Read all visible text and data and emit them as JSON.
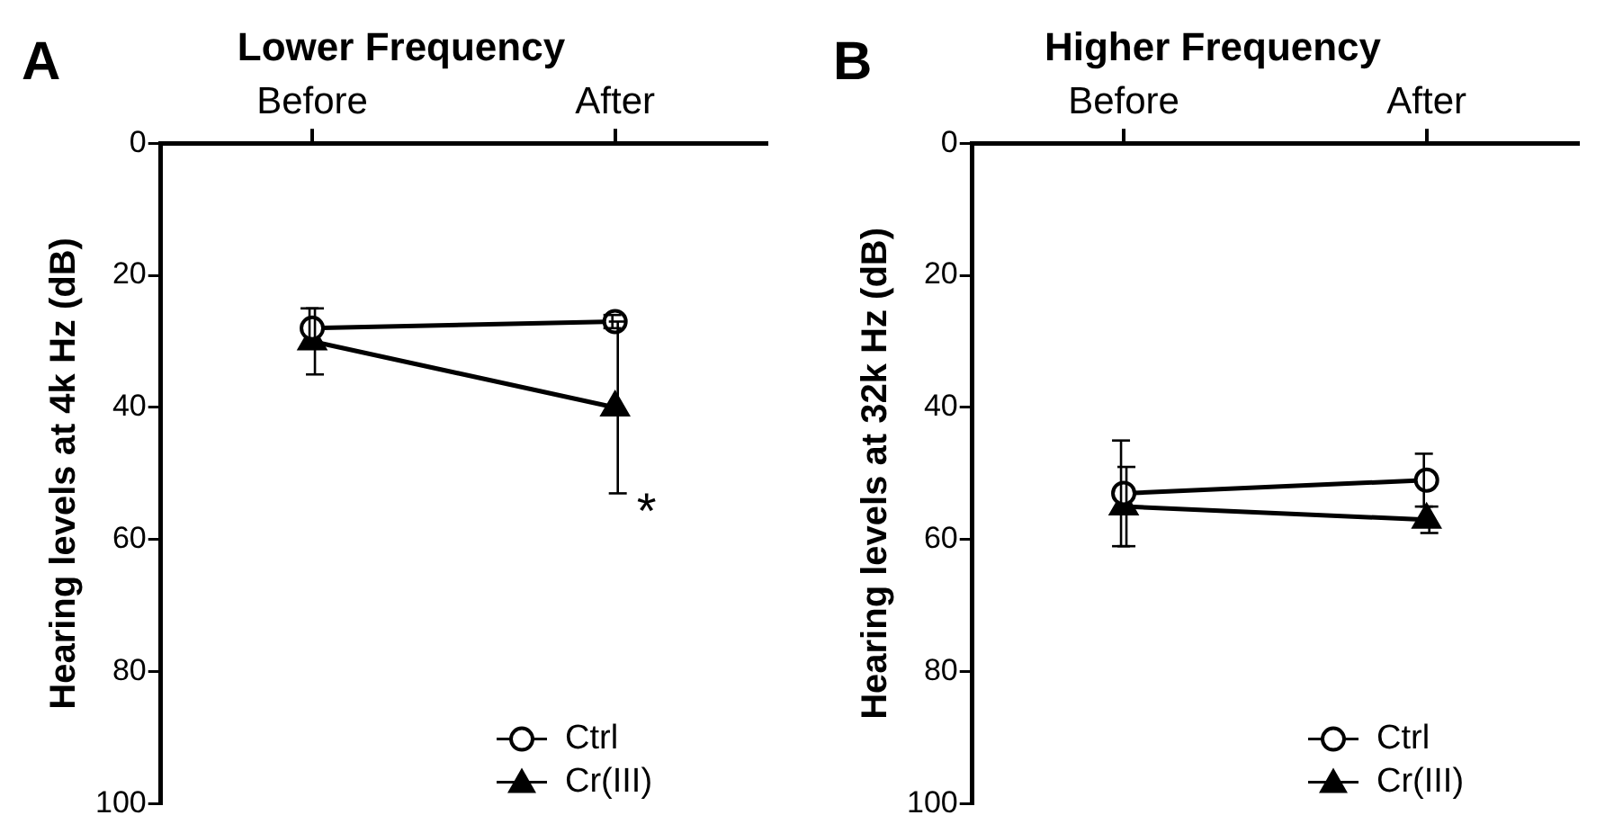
{
  "chart_data": [
    {
      "type": "line",
      "title": "Lower Frequency",
      "ylabel": "Hearing levels at 4k Hz (dB)",
      "categories": [
        "Before",
        "After"
      ],
      "ylim": [
        100,
        0
      ],
      "yticks": [
        0,
        20,
        40,
        60,
        80,
        100
      ],
      "grid": false,
      "legend": "bottom right",
      "line_style": "solid",
      "series": [
        {
          "name": "Ctrl",
          "color": "#000000",
          "marker": "circle",
          "values": [
            28,
            27
          ],
          "errors": [
            3,
            1
          ]
        },
        {
          "name": "Cr(III)",
          "color": "#000000",
          "marker": "triangle",
          "values": [
            30,
            40
          ],
          "errors": [
            5,
            13
          ]
        }
      ],
      "annotations": [
        "A",
        {
          "text": "*",
          "x": "After",
          "y": 54
        }
      ]
    },
    {
      "type": "line",
      "title": "Higher Frequency",
      "ylabel": "Hearing levels at 32k Hz (dB)",
      "categories": [
        "Before",
        "After"
      ],
      "ylim": [
        100,
        0
      ],
      "yticks": [
        0,
        20,
        40,
        60,
        80,
        100
      ],
      "grid": false,
      "legend": "bottom right",
      "line_style": "solid",
      "series": [
        {
          "name": "Ctrl",
          "color": "#000000",
          "marker": "circle",
          "values": [
            53,
            51
          ],
          "errors": [
            8,
            4
          ]
        },
        {
          "name": "Cr(III)",
          "color": "#000000",
          "marker": "triangle",
          "values": [
            55,
            57
          ],
          "errors": [
            6,
            2
          ]
        }
      ],
      "annotations": [
        "B"
      ]
    }
  ]
}
